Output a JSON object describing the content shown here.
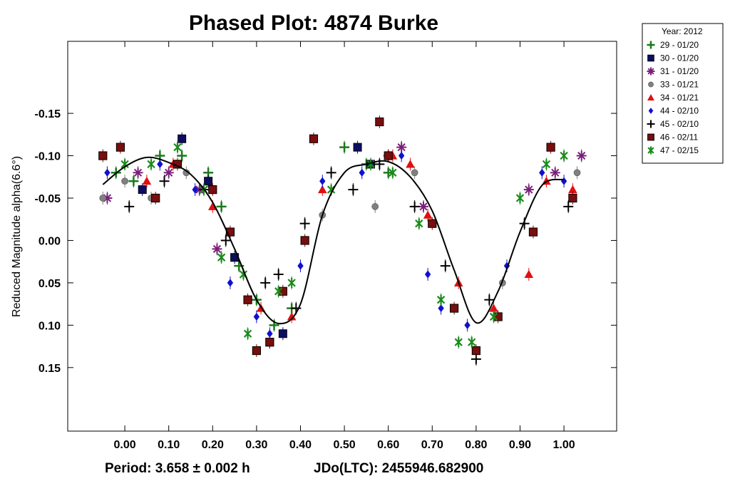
{
  "chart_data": {
    "type": "scatter",
    "title": "Phased Plot: 4874 Burke",
    "xlabel": "",
    "ylabel": "Reduced Magnitude alpha(6.6°)",
    "xlim": [
      -0.13,
      1.12
    ],
    "ylim": [
      0.225,
      -0.235
    ],
    "y_inverted": true,
    "x_ticks": [
      "0.00",
      "0.10",
      "0.20",
      "0.30",
      "0.40",
      "0.50",
      "0.60",
      "0.70",
      "0.80",
      "0.90",
      "1.00"
    ],
    "y_ticks": [
      "-0.15",
      "-0.10",
      "-0.05",
      "0.00",
      "0.05",
      "0.10",
      "0.15"
    ],
    "legend_title": "Year: 2012",
    "legend_position": "outside-top-right",
    "fit_curve": {
      "color": "#000000",
      "x": [
        -0.05,
        0.0,
        0.05,
        0.1,
        0.15,
        0.2,
        0.25,
        0.3,
        0.35,
        0.4,
        0.45,
        0.5,
        0.55,
        0.6,
        0.65,
        0.7,
        0.75,
        0.8,
        0.85,
        0.9,
        0.95,
        1.0
      ],
      "y": [
        -0.066,
        -0.087,
        -0.098,
        -0.092,
        -0.078,
        -0.045,
        0.01,
        0.07,
        0.098,
        0.075,
        -0.03,
        -0.08,
        -0.09,
        -0.093,
        -0.075,
        -0.035,
        0.035,
        0.097,
        0.06,
        -0.01,
        -0.065,
        -0.072
      ]
    },
    "series": [
      {
        "name": "29 - 01/20",
        "marker": "plus-thick",
        "color": "#1a7a1a",
        "points": [
          [
            -0.02,
            -0.08
          ],
          [
            0.02,
            -0.07
          ],
          [
            0.08,
            -0.1
          ],
          [
            0.13,
            -0.1
          ],
          [
            0.19,
            -0.08
          ],
          [
            0.22,
            -0.04
          ],
          [
            0.26,
            0.03
          ],
          [
            0.3,
            0.07
          ],
          [
            0.34,
            0.1
          ],
          [
            0.38,
            0.08
          ],
          [
            0.5,
            -0.11
          ],
          [
            0.55,
            -0.09
          ],
          [
            0.6,
            -0.08
          ]
        ]
      },
      {
        "name": "30 - 01/20",
        "marker": "square",
        "color": "#0d0d5e",
        "points": [
          [
            0.04,
            -0.06
          ],
          [
            0.13,
            -0.12
          ],
          [
            0.19,
            -0.07
          ],
          [
            0.25,
            0.02
          ],
          [
            0.33,
            0.12
          ],
          [
            0.36,
            0.11
          ],
          [
            0.53,
            -0.11
          ],
          [
            0.56,
            -0.09
          ]
        ]
      },
      {
        "name": "31 - 01/20",
        "marker": "asterisk",
        "color": "#7a1f7a",
        "points": [
          [
            -0.04,
            -0.05
          ],
          [
            0.03,
            -0.08
          ],
          [
            0.1,
            -0.08
          ],
          [
            0.17,
            -0.06
          ],
          [
            0.21,
            0.01
          ],
          [
            0.6,
            -0.1
          ],
          [
            0.63,
            -0.11
          ],
          [
            0.68,
            -0.04
          ],
          [
            0.92,
            -0.06
          ],
          [
            0.98,
            -0.08
          ],
          [
            1.04,
            -0.1
          ]
        ]
      },
      {
        "name": "33 - 01/21",
        "marker": "circle",
        "color": "#808080",
        "points": [
          [
            -0.05,
            -0.05
          ],
          [
            0.0,
            -0.07
          ],
          [
            0.06,
            -0.05
          ],
          [
            0.14,
            -0.08
          ],
          [
            0.45,
            -0.03
          ],
          [
            0.57,
            -0.04
          ],
          [
            0.66,
            -0.08
          ],
          [
            0.86,
            0.05
          ],
          [
            1.03,
            -0.08
          ]
        ]
      },
      {
        "name": "34 - 01/21",
        "marker": "triangle",
        "color": "#e01010",
        "points": [
          [
            0.05,
            -0.07
          ],
          [
            0.11,
            -0.09
          ],
          [
            0.2,
            -0.04
          ],
          [
            0.31,
            0.08
          ],
          [
            0.38,
            0.09
          ],
          [
            0.45,
            -0.06
          ],
          [
            0.61,
            -0.1
          ],
          [
            0.65,
            -0.09
          ],
          [
            0.69,
            -0.03
          ],
          [
            0.76,
            0.05
          ],
          [
            0.84,
            0.08
          ],
          [
            0.92,
            0.04
          ],
          [
            0.96,
            -0.07
          ],
          [
            1.02,
            -0.06
          ]
        ]
      },
      {
        "name": "44 - 02/10",
        "marker": "diamond",
        "color": "#1010d0",
        "points": [
          [
            -0.04,
            -0.08
          ],
          [
            0.08,
            -0.09
          ],
          [
            0.16,
            -0.06
          ],
          [
            0.24,
            0.05
          ],
          [
            0.3,
            0.09
          ],
          [
            0.33,
            0.11
          ],
          [
            0.4,
            0.03
          ],
          [
            0.45,
            -0.07
          ],
          [
            0.54,
            -0.08
          ],
          [
            0.63,
            -0.1
          ],
          [
            0.69,
            0.04
          ],
          [
            0.72,
            0.08
          ],
          [
            0.78,
            0.1
          ],
          [
            0.87,
            0.03
          ],
          [
            0.95,
            -0.08
          ],
          [
            1.0,
            -0.07
          ]
        ]
      },
      {
        "name": "45 - 02/10",
        "marker": "plus",
        "color": "#000000",
        "points": [
          [
            0.01,
            -0.04
          ],
          [
            0.09,
            -0.07
          ],
          [
            0.18,
            -0.06
          ],
          [
            0.23,
            0.0
          ],
          [
            0.32,
            0.05
          ],
          [
            0.35,
            0.04
          ],
          [
            0.39,
            0.08
          ],
          [
            0.41,
            -0.02
          ],
          [
            0.47,
            -0.08
          ],
          [
            0.52,
            -0.06
          ],
          [
            0.58,
            -0.09
          ],
          [
            0.66,
            -0.04
          ],
          [
            0.73,
            0.03
          ],
          [
            0.8,
            0.14
          ],
          [
            0.83,
            0.07
          ],
          [
            0.91,
            -0.02
          ],
          [
            1.01,
            -0.04
          ]
        ]
      },
      {
        "name": "46 - 02/11",
        "marker": "square-filled",
        "color": "#7a0d0d",
        "points": [
          [
            -0.05,
            -0.1
          ],
          [
            -0.01,
            -0.11
          ],
          [
            0.07,
            -0.05
          ],
          [
            0.12,
            -0.09
          ],
          [
            0.2,
            -0.06
          ],
          [
            0.24,
            -0.01
          ],
          [
            0.28,
            0.07
          ],
          [
            0.3,
            0.13
          ],
          [
            0.33,
            0.12
          ],
          [
            0.36,
            0.06
          ],
          [
            0.41,
            0.0
          ],
          [
            0.43,
            -0.12
          ],
          [
            0.58,
            -0.14
          ],
          [
            0.6,
            -0.1
          ],
          [
            0.7,
            -0.02
          ],
          [
            0.75,
            0.08
          ],
          [
            0.8,
            0.13
          ],
          [
            0.85,
            0.09
          ],
          [
            0.93,
            -0.01
          ],
          [
            0.97,
            -0.11
          ],
          [
            1.02,
            -0.05
          ]
        ]
      },
      {
        "name": "47 - 02/15",
        "marker": "star",
        "color": "#1a8a1a",
        "points": [
          [
            0.0,
            -0.09
          ],
          [
            0.06,
            -0.09
          ],
          [
            0.12,
            -0.11
          ],
          [
            0.18,
            -0.06
          ],
          [
            0.22,
            0.02
          ],
          [
            0.27,
            0.04
          ],
          [
            0.28,
            0.11
          ],
          [
            0.35,
            0.06
          ],
          [
            0.38,
            0.05
          ],
          [
            0.47,
            -0.06
          ],
          [
            0.56,
            -0.09
          ],
          [
            0.61,
            -0.08
          ],
          [
            0.67,
            -0.02
          ],
          [
            0.72,
            0.07
          ],
          [
            0.76,
            0.12
          ],
          [
            0.79,
            0.12
          ],
          [
            0.84,
            0.09
          ],
          [
            0.9,
            -0.05
          ],
          [
            0.96,
            -0.09
          ],
          [
            1.0,
            -0.1
          ]
        ]
      }
    ]
  },
  "footer": {
    "period": "Period: 3.658 ± 0.002 h",
    "jdo": "JDo(LTC): 2455946.682900"
  }
}
